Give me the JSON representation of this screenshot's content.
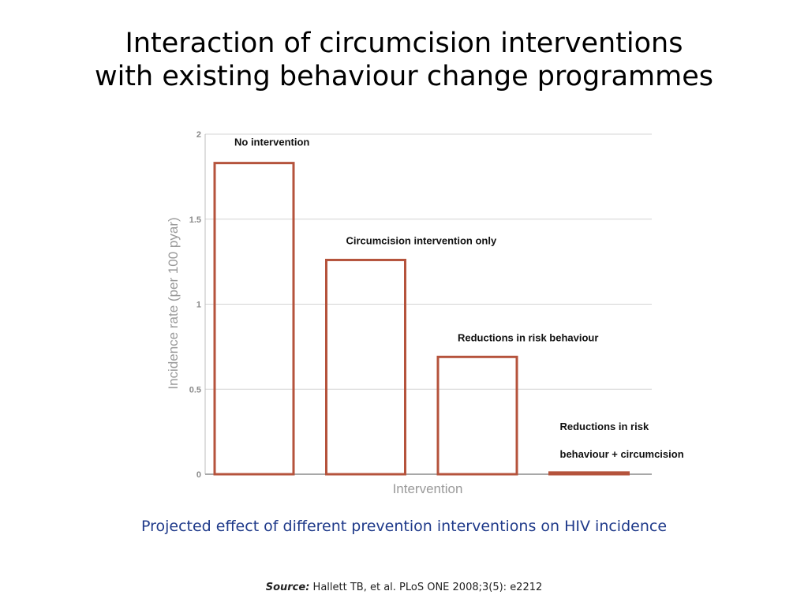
{
  "slide": {
    "title_lines": [
      "Interaction of circumcision interventions",
      "with existing behaviour change programmes"
    ],
    "caption": "Projected effect of different prevention interventions on HIV incidence",
    "source_label": "Source:",
    "source_text": "Hallett TB, et al. PLoS ONE 2008;3(5): e2212"
  },
  "chart_data": {
    "type": "bar",
    "categories": [
      "No intervention",
      "Circumcision intervention only",
      "Reductions in risk behaviour",
      "Reductions in risk behaviour + circumcision"
    ],
    "category_label_lines": [
      [
        "No intervention"
      ],
      [
        "Circumcision intervention only"
      ],
      [
        "Reductions in risk behaviour"
      ],
      [
        "Reductions in risk",
        "behaviour + circumcision"
      ]
    ],
    "values": [
      1.83,
      1.26,
      0.69,
      0.01
    ],
    "xlabel": "Intervention",
    "ylabel": "Incidence rate (per 100 pyar)",
    "ylim": [
      0,
      2
    ],
    "yticks": [
      0,
      0.5,
      1,
      1.5,
      2
    ],
    "ytick_labels": [
      "0",
      "0.5",
      "1",
      "1.5",
      "2"
    ],
    "grid": true,
    "legend": "none",
    "bar_color": "#b5533c"
  }
}
